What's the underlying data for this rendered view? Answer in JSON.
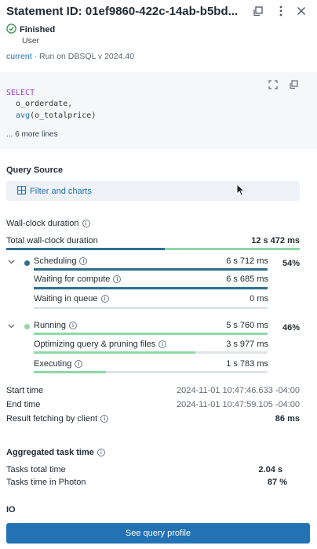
{
  "header": {
    "title": "Statement ID: 01ef9860-422c-14ab-b5bd...",
    "status": "Finished",
    "user": "User",
    "run_link": "current",
    "run_info": " · Run on DBSQL v 2024.40"
  },
  "code": {
    "line1": "SELECT",
    "line2": "o_orderdate,",
    "line3_fn": "avg",
    "line3_rest": "(o_totalprice)",
    "more": "... 6 more lines"
  },
  "query_source": {
    "heading": "Query Source",
    "button": "Filter and charts"
  },
  "wall_clock": {
    "heading": "Wall-clock duration",
    "total_label": "Total wall-clock duration",
    "total_value": "12 s 472 ms",
    "total_split": 0.54,
    "scheduling": {
      "label": "Scheduling",
      "value": "6 s 712 ms",
      "pct": "54%",
      "fraction": 0.54
    },
    "waiting_compute": {
      "label": "Waiting for compute",
      "value": "6 s 685 ms",
      "fraction": 1.0
    },
    "waiting_queue": {
      "label": "Waiting in queue",
      "value": "0 ms",
      "fraction": 0.0
    },
    "running": {
      "label": "Running",
      "value": "5 s 760 ms",
      "pct": "46%",
      "fraction": 0.46
    },
    "optimizing": {
      "label": "Optimizing query & pruning files",
      "value": "3 s 977 ms",
      "fraction": 0.69
    },
    "executing": {
      "label": "Executing",
      "value": "1 s 783 ms",
      "fraction": 0.31
    }
  },
  "times": {
    "start_label": "Start time",
    "start_value": "2024-11-01 10:47:46.633 -04:00",
    "end_label": "End time",
    "end_value": "2024-11-01 10:47:59.105 -04:00",
    "fetch_label": "Result fetching by client",
    "fetch_value": "86 ms"
  },
  "aggregated": {
    "heading": "Aggregated task time",
    "total_label": "Tasks total time",
    "total_value": "2.04 s",
    "photon_label": "Tasks time in Photon",
    "photon_value": "87 %"
  },
  "io": {
    "heading": "IO"
  },
  "footer": {
    "button": "See query profile"
  },
  "colors": {
    "scheduling": "#2e6f8e",
    "running": "#8fd9a8",
    "accent": "#2272b4",
    "finished": "#2e8b3e"
  }
}
